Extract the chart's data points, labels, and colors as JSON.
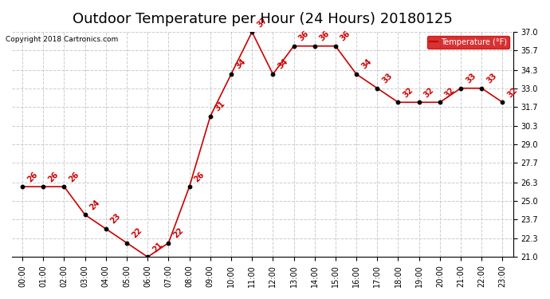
{
  "title": "Outdoor Temperature per Hour (24 Hours) 20180125",
  "copyright": "Copyright 2018 Cartronics.com",
  "legend_label": "Temperature (°F)",
  "hours": [
    "00:00",
    "01:00",
    "02:00",
    "03:00",
    "04:00",
    "05:00",
    "06:00",
    "07:00",
    "08:00",
    "09:00",
    "10:00",
    "11:00",
    "12:00",
    "13:00",
    "14:00",
    "15:00",
    "16:00",
    "17:00",
    "18:00",
    "19:00",
    "20:00",
    "21:00",
    "22:00",
    "23:00"
  ],
  "temps": [
    26,
    26,
    26,
    24,
    23,
    22,
    21,
    22,
    26,
    31,
    34,
    37,
    34,
    36,
    36,
    36,
    34,
    33,
    32,
    32,
    32,
    33,
    33,
    32
  ],
  "ylim": [
    21.0,
    37.0
  ],
  "yticks": [
    21.0,
    22.3,
    23.7,
    25.0,
    26.3,
    27.7,
    29.0,
    30.3,
    31.7,
    33.0,
    34.3,
    35.7,
    37.0
  ],
  "line_color": "#cc0000",
  "marker_color": "#000000",
  "bg_color": "#ffffff",
  "grid_color": "#cccccc",
  "legend_bg": "#cc0000",
  "legend_fg": "#ffffff",
  "title_fontsize": 13,
  "label_fontsize": 7.5,
  "annot_fontsize": 7,
  "tick_fontsize": 7
}
